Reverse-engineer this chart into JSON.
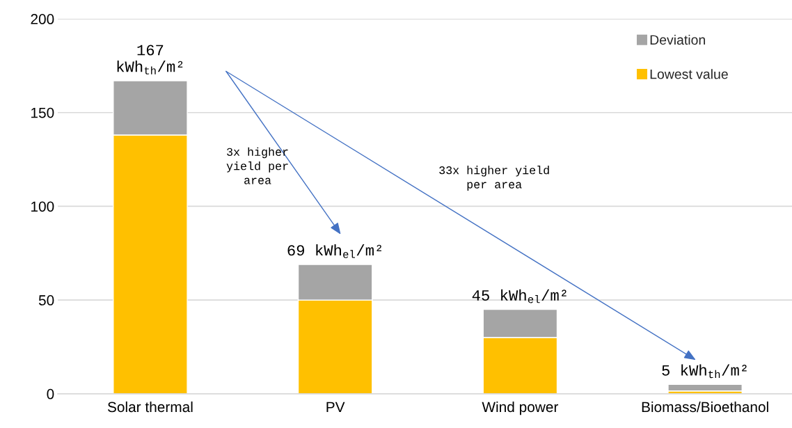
{
  "chart_data": {
    "type": "bar",
    "stacked": true,
    "categories": [
      "Solar thermal",
      "PV",
      "Wind power",
      "Biomass/Bioethanol"
    ],
    "series": [
      {
        "name": "Lowest value",
        "color": "#ffc000",
        "values": [
          138,
          50,
          30,
          1.5
        ]
      },
      {
        "name": "Deviation",
        "color": "#a5a5a5",
        "values": [
          29,
          19,
          15,
          3.5
        ]
      }
    ],
    "totals": [
      "167\nkWh$_{th}$/m²",
      "69 kWh$_{el}$/m²",
      "45 kWh$_{el}$/m²",
      "5 kWh$_{th}$/m²"
    ],
    "annotations": [
      "3x higher\nyield per\narea",
      "33x higher yield\nper area"
    ],
    "ylim": [
      0,
      200
    ],
    "yticks": [
      0,
      50,
      100,
      150,
      200
    ],
    "grid": "y",
    "legend": "top right"
  }
}
